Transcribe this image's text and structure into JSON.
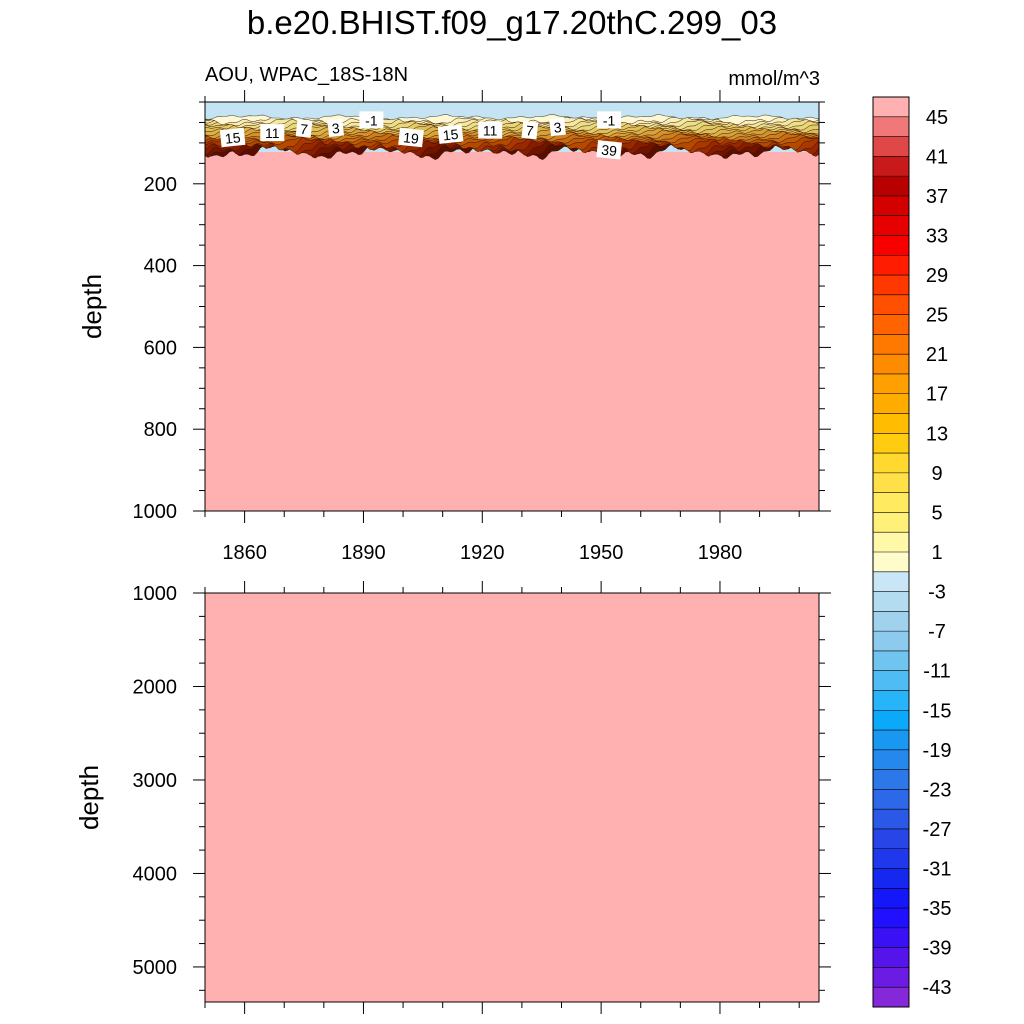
{
  "title": "b.e20.BHIST.f09_g17.20thC.299_03",
  "subtitle_left": "AOU, WPAC_18S-18N",
  "subtitle_right": "mmol/m^3",
  "chart_data": [
    {
      "type": "heatmap",
      "panel": "upper",
      "variable": "AOU",
      "region": "WPAC_18S-18N",
      "units": "mmol/m^3",
      "xlabel": "",
      "ylabel": "depth",
      "xlim": [
        1850,
        2005
      ],
      "ylim": [
        0,
        1000
      ],
      "y_reversed": true,
      "xticks": [
        1860,
        1890,
        1920,
        1950,
        1980
      ],
      "yticks": [
        200,
        400,
        600,
        800,
        1000
      ],
      "surface_value_approx": -3,
      "deep_value_approx": 45,
      "transition_depth_range": [
        40,
        130
      ],
      "contour_labels": [
        {
          "text": "15",
          "x": 1857,
          "depth": 88
        },
        {
          "text": "11",
          "x": 1867,
          "depth": 76
        },
        {
          "text": "7",
          "x": 1875,
          "depth": 66
        },
        {
          "text": "3",
          "x": 1883,
          "depth": 64
        },
        {
          "text": "-1",
          "x": 1892,
          "depth": 45
        },
        {
          "text": "19",
          "x": 1902,
          "depth": 88
        },
        {
          "text": "15",
          "x": 1912,
          "depth": 80
        },
        {
          "text": "11",
          "x": 1922,
          "depth": 70
        },
        {
          "text": "7",
          "x": 1932,
          "depth": 70
        },
        {
          "text": "3",
          "x": 1939,
          "depth": 62
        },
        {
          "text": "-1",
          "x": 1952,
          "depth": 45
        },
        {
          "text": "39",
          "x": 1952,
          "depth": 118
        }
      ]
    },
    {
      "type": "heatmap",
      "panel": "lower",
      "variable": "AOU",
      "xlabel": "",
      "ylabel": "depth",
      "xlim": [
        1850,
        2005
      ],
      "ylim": [
        1000,
        5375
      ],
      "y_reversed": true,
      "xticks": [
        1860,
        1890,
        1920,
        1950,
        1980
      ],
      "yticks": [
        1000,
        2000,
        3000,
        4000,
        5000
      ],
      "value_approx": 45
    }
  ],
  "colorbar": {
    "labels": [
      "45",
      "41",
      "37",
      "33",
      "29",
      "25",
      "21",
      "17",
      "13",
      "9",
      "5",
      "1",
      "-3",
      "-7",
      "-11",
      "-15",
      "-19",
      "-23",
      "-27",
      "-31",
      "-35",
      "-39",
      "-43"
    ],
    "colors": [
      "#ffb0b0",
      "#f07878",
      "#e04848",
      "#c81a1a",
      "#b80000",
      "#d40000",
      "#e60000",
      "#f80000",
      "#ff1c00",
      "#ff3800",
      "#ff5000",
      "#ff6400",
      "#ff7800",
      "#ff8c00",
      "#ffa000",
      "#ffac00",
      "#ffbc00",
      "#ffcc10",
      "#ffd830",
      "#ffe048",
      "#ffea60",
      "#fff07a",
      "#fff8a8",
      "#fffccc",
      "#c8e6f5",
      "#b4dcf0",
      "#a0d2ee",
      "#8ccaee",
      "#70c4f0",
      "#50bcf4",
      "#28b4f8",
      "#0ca8fa",
      "#1898f0",
      "#2488ec",
      "#2c78e8",
      "#2c68e8",
      "#2c58e8",
      "#2846e8",
      "#2038ec",
      "#1428f0",
      "#1418f8",
      "#2010ff",
      "#3a10f4",
      "#5414ea",
      "#6c1ce2",
      "#8428da"
    ]
  },
  "colors": {
    "surface_blue": "#c4e4f4",
    "deep_pink": "#ffb0b0",
    "dark_band": "#8a1a00"
  }
}
